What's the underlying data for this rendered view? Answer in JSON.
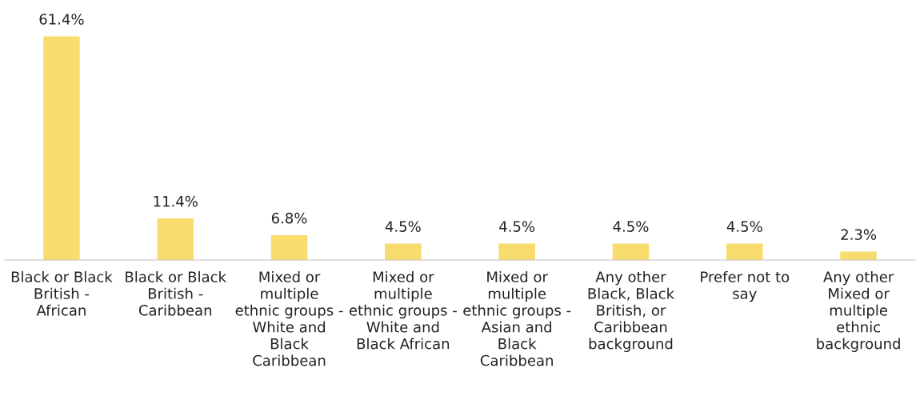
{
  "chart_data": {
    "type": "bar",
    "categories": [
      "Black or Black\nBritish -\nAfrican",
      "Black or Black\nBritish -\nCaribbean",
      "Mixed or\nmultiple\nethnic groups -\nWhite and\nBlack\nCaribbean",
      "Mixed or\nmultiple\nethnic groups -\nWhite and\nBlack African",
      "Mixed or\nmultiple\nethnic groups -\nAsian and\nBlack\nCaribbean",
      "Any other\nBlack, Black\nBritish, or\nCaribbean\nbackground",
      "Prefer not to\nsay",
      "Any other\nMixed or\nmultiple\nethnic\nbackground"
    ],
    "values": [
      61.4,
      11.4,
      6.8,
      4.5,
      4.5,
      4.5,
      4.5,
      2.3
    ],
    "value_labels": [
      "61.4%",
      "11.4%",
      "6.8%",
      "4.5%",
      "4.5%",
      "4.5%",
      "4.5%",
      "2.3%"
    ],
    "color": "#f9dc6e",
    "grid": false,
    "legend": false
  }
}
